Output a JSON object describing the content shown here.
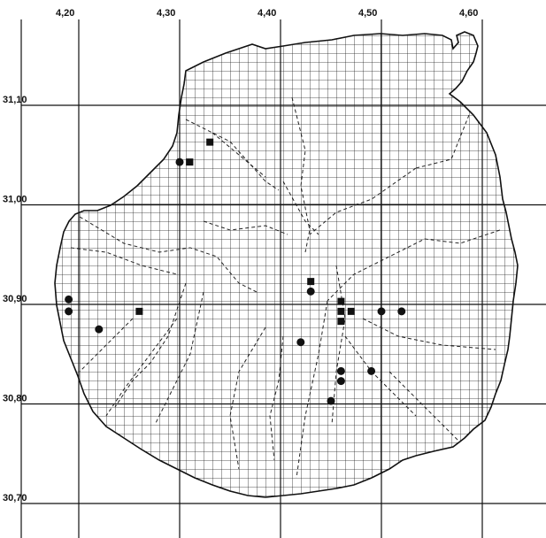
{
  "map": {
    "x_labels": [
      "4,20",
      "4,30",
      "4,40",
      "4,50",
      "4,60"
    ],
    "y_labels": [
      "31,10",
      "31,00",
      "30,90",
      "30,80",
      "30,70"
    ],
    "colors": {
      "ink": "#111111",
      "grid": "#222222",
      "background": "#ffffff"
    },
    "symbols": {
      "circle": [
        [
          4.19,
          30.905
        ],
        [
          4.19,
          30.893
        ],
        [
          4.22,
          30.875
        ],
        [
          4.3,
          31.043
        ],
        [
          4.43,
          30.913
        ],
        [
          4.42,
          30.862
        ],
        [
          4.46,
          30.833
        ],
        [
          4.46,
          30.823
        ],
        [
          4.45,
          30.803
        ],
        [
          4.49,
          30.833
        ],
        [
          4.5,
          30.893
        ],
        [
          4.52,
          30.893
        ]
      ],
      "square": [
        [
          4.26,
          30.893
        ],
        [
          4.31,
          31.043
        ],
        [
          4.33,
          31.063
        ],
        [
          4.43,
          30.923
        ],
        [
          4.46,
          30.903
        ],
        [
          4.46,
          30.893
        ],
        [
          4.46,
          30.883
        ],
        [
          4.47,
          30.893
        ]
      ]
    }
  }
}
